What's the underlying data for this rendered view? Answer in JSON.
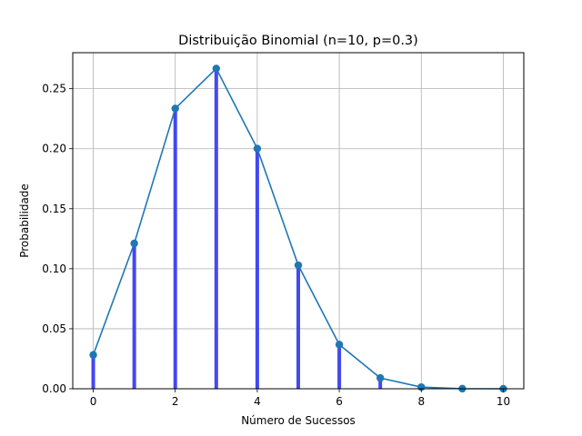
{
  "chart_data": {
    "type": "bar",
    "title": "Distribuição Binomial (n=10, p=0.3)",
    "xlabel": "Número de Sucessos",
    "ylabel": "Probabilidade",
    "x": [
      0,
      1,
      2,
      3,
      4,
      5,
      6,
      7,
      8,
      9,
      10
    ],
    "values": [
      0.0282,
      0.1211,
      0.2335,
      0.2668,
      0.2001,
      0.1029,
      0.0368,
      0.009,
      0.0014,
      0.0001,
      0.0
    ],
    "xlim": [
      -0.5,
      10.5
    ],
    "ylim": [
      0,
      0.28
    ],
    "xticks": [
      0,
      2,
      4,
      6,
      8,
      10
    ],
    "yticks": [
      0.0,
      0.05,
      0.1,
      0.15,
      0.2,
      0.25
    ],
    "xtick_labels": [
      "0",
      "2",
      "4",
      "6",
      "8",
      "10"
    ],
    "ytick_labels": [
      "0.00",
      "0.05",
      "0.10",
      "0.15",
      "0.20",
      "0.25"
    ],
    "grid": true,
    "bar_color": "#3a3ff0",
    "line_color": "#1f77b4",
    "overlay": "line-with-markers"
  }
}
